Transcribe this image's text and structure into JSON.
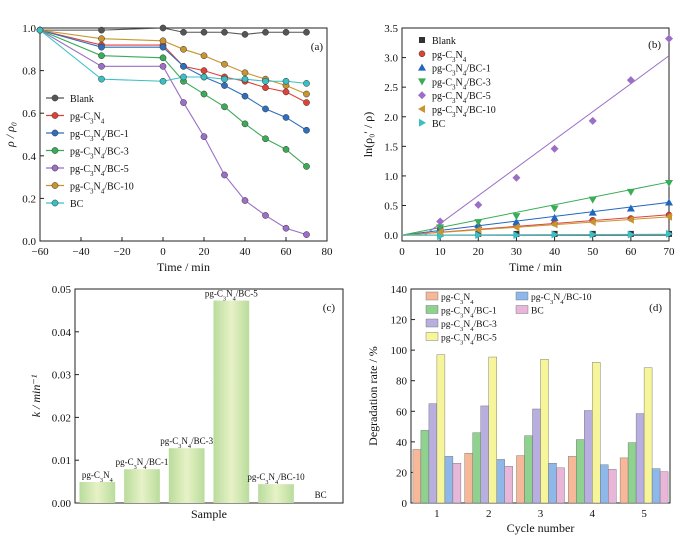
{
  "chart_data": [
    {
      "panel": "(a)",
      "type": "line",
      "xlabel": "Time / min",
      "ylabel": "ρ / ρ₀",
      "xlim": [
        -60,
        80
      ],
      "ylim": [
        0.0,
        1.0
      ],
      "xticks": [
        "−60",
        "−40",
        "−20",
        "0",
        "20",
        "40",
        "60",
        "80"
      ],
      "yticks": [
        "0.0",
        "0.2",
        "0.4",
        "0.6",
        "0.8",
        "1.0"
      ],
      "legend_position": "lower-left",
      "series": [
        {
          "name": "Blank",
          "color": "#555555",
          "x": [
            -60,
            -30,
            0,
            10,
            20,
            30,
            40,
            50,
            60,
            70
          ],
          "y": [
            0.99,
            0.99,
            1.0,
            0.98,
            0.98,
            0.98,
            0.97,
            0.98,
            0.98,
            0.98
          ]
        },
        {
          "name": "pg-C3N4",
          "color": "#e04238",
          "x": [
            -60,
            -30,
            0,
            10,
            20,
            30,
            40,
            50,
            60,
            70
          ],
          "y": [
            0.99,
            0.92,
            0.92,
            0.82,
            0.8,
            0.77,
            0.75,
            0.72,
            0.7,
            0.65
          ]
        },
        {
          "name": "pg-C3N4/BC-1",
          "color": "#2f6fbf",
          "x": [
            -60,
            -30,
            0,
            10,
            20,
            30,
            40,
            50,
            60,
            70
          ],
          "y": [
            0.99,
            0.91,
            0.91,
            0.82,
            0.77,
            0.73,
            0.68,
            0.62,
            0.58,
            0.52
          ]
        },
        {
          "name": "pg-C3N4/BC-3",
          "color": "#3aab57",
          "x": [
            -60,
            -30,
            0,
            10,
            20,
            30,
            40,
            50,
            60,
            70
          ],
          "y": [
            0.99,
            0.87,
            0.86,
            0.75,
            0.69,
            0.63,
            0.55,
            0.48,
            0.43,
            0.35
          ]
        },
        {
          "name": "pg-C3N4/BC-5",
          "color": "#9b6fc7",
          "x": [
            -60,
            -30,
            0,
            10,
            20,
            30,
            40,
            50,
            60,
            70
          ],
          "y": [
            0.99,
            0.82,
            0.82,
            0.65,
            0.49,
            0.31,
            0.19,
            0.12,
            0.06,
            0.03
          ]
        },
        {
          "name": "pg-C3N4/BC-10",
          "color": "#c9952e",
          "x": [
            -60,
            -30,
            0,
            10,
            20,
            30,
            40,
            50,
            60,
            70
          ],
          "y": [
            0.99,
            0.95,
            0.94,
            0.9,
            0.87,
            0.83,
            0.79,
            0.76,
            0.73,
            0.69
          ]
        },
        {
          "name": "BC",
          "color": "#38c0c4",
          "x": [
            -60,
            -30,
            0,
            10,
            20,
            30,
            40,
            50,
            60,
            70
          ],
          "y": [
            0.99,
            0.76,
            0.75,
            0.77,
            0.77,
            0.76,
            0.76,
            0.75,
            0.75,
            0.74
          ]
        }
      ]
    },
    {
      "panel": "(b)",
      "type": "scatter",
      "xlabel": "Time / min",
      "ylabel": "ln(ρ₀′ / ρ)",
      "xlim": [
        0,
        70
      ],
      "ylim": [
        -0.1,
        3.5
      ],
      "xticks": [
        "0",
        "10",
        "20",
        "30",
        "40",
        "50",
        "60",
        "70"
      ],
      "yticks": [
        "0.0",
        "0.5",
        "1.0",
        "1.5",
        "2.0",
        "2.5",
        "3.0",
        "3.5"
      ],
      "legend_position": "top-left",
      "fit_lines": true,
      "series": [
        {
          "name": "Blank",
          "color": "#333333",
          "marker": "square",
          "x": [
            10,
            20,
            30,
            40,
            50,
            60,
            70
          ],
          "y": [
            0.02,
            0.02,
            0.02,
            0.02,
            0.02,
            0.02,
            0.02
          ],
          "fit": [
            0.0,
            0.0
          ]
        },
        {
          "name": "pg-C3N4",
          "color": "#e04238",
          "marker": "circle",
          "x": [
            10,
            20,
            30,
            40,
            50,
            60,
            70
          ],
          "y": [
            0.11,
            0.14,
            0.18,
            0.2,
            0.25,
            0.28,
            0.34
          ],
          "fit": [
            0.0049,
            0.0
          ]
        },
        {
          "name": "pg-C3N4/BC-1",
          "color": "#2166c0",
          "marker": "triangle-up",
          "x": [
            10,
            20,
            30,
            40,
            50,
            60,
            70
          ],
          "y": [
            0.1,
            0.17,
            0.22,
            0.29,
            0.38,
            0.45,
            0.55
          ],
          "fit": [
            0.0079,
            0.0
          ]
        },
        {
          "name": "pg-C3N4/BC-3",
          "color": "#3aab57",
          "marker": "triangle-down",
          "x": [
            10,
            20,
            30,
            40,
            50,
            60,
            70
          ],
          "y": [
            0.13,
            0.22,
            0.32,
            0.45,
            0.6,
            0.73,
            0.88
          ],
          "fit": [
            0.0128,
            0.0
          ]
        },
        {
          "name": "pg-C3N4/BC-5",
          "color": "#9b6fc7",
          "marker": "diamond",
          "x": [
            10,
            20,
            30,
            40,
            50,
            60,
            70
          ],
          "y": [
            0.23,
            0.51,
            0.97,
            1.46,
            1.93,
            2.62,
            3.32
          ],
          "fit": [
            0.0473,
            -0.28
          ]
        },
        {
          "name": "pg-C3N4/BC-10",
          "color": "#c9952e",
          "marker": "triangle-left",
          "x": [
            10,
            20,
            30,
            40,
            50,
            60,
            70
          ],
          "y": [
            0.05,
            0.09,
            0.13,
            0.18,
            0.22,
            0.26,
            0.31
          ],
          "fit": [
            0.0044,
            0.0
          ]
        },
        {
          "name": "BC",
          "color": "#38c0c4",
          "marker": "triangle-right",
          "x": [
            10,
            20,
            30,
            40,
            50,
            60,
            70
          ],
          "y": [
            -0.02,
            0.0,
            0.0,
            0.01,
            0.01,
            0.01,
            0.02
          ],
          "fit": [
            0.0002,
            0.0
          ]
        }
      ]
    },
    {
      "panel": "(c)",
      "type": "bar",
      "xlabel": "Sample",
      "ylabel": "k / min⁻¹",
      "ylim": [
        0.0,
        0.05
      ],
      "yticks": [
        "0.00",
        "0.01",
        "0.02",
        "0.03",
        "0.04",
        "0.05"
      ],
      "categories": [
        "pg-C3N4",
        "pg-C3N4/BC-1",
        "pg-C3N4/BC-3",
        "pg-C3N4/BC-5",
        "pg-C3N4/BC-10",
        "BC"
      ],
      "values": [
        0.0049,
        0.0079,
        0.0128,
        0.0473,
        0.0044,
        0.0002
      ]
    },
    {
      "panel": "(d)",
      "type": "bar",
      "xlabel": "Cycle number",
      "ylabel": "Degradation rate / %",
      "ylim": [
        0,
        140
      ],
      "yticks": [
        "0",
        "20",
        "40",
        "60",
        "80",
        "100",
        "120",
        "140"
      ],
      "categories": [
        "1",
        "2",
        "3",
        "4",
        "5"
      ],
      "legend_position": "top",
      "series": [
        {
          "name": "pg-C3N4",
          "color": "#f7b89a",
          "values": [
            35,
            32.5,
            31,
            30.5,
            29.5
          ]
        },
        {
          "name": "pg-C3N4/BC-1",
          "color": "#8fd28f",
          "values": [
            47.5,
            46,
            44,
            41.5,
            39.5
          ]
        },
        {
          "name": "pg-C3N4/BC-3",
          "color": "#b8aee0",
          "values": [
            65,
            63.5,
            61.5,
            60.5,
            58.5
          ]
        },
        {
          "name": "pg-C3N4/BC-5",
          "color": "#f7f59a",
          "values": [
            97,
            95.5,
            94,
            92,
            88.5
          ]
        },
        {
          "name": "pg-C3N4/BC-10",
          "color": "#8fb8ea",
          "values": [
            30.5,
            28.5,
            26,
            25,
            22.5
          ]
        },
        {
          "name": "BC",
          "color": "#e8b6d8",
          "values": [
            26,
            24,
            23,
            22,
            20.5
          ]
        }
      ]
    }
  ]
}
